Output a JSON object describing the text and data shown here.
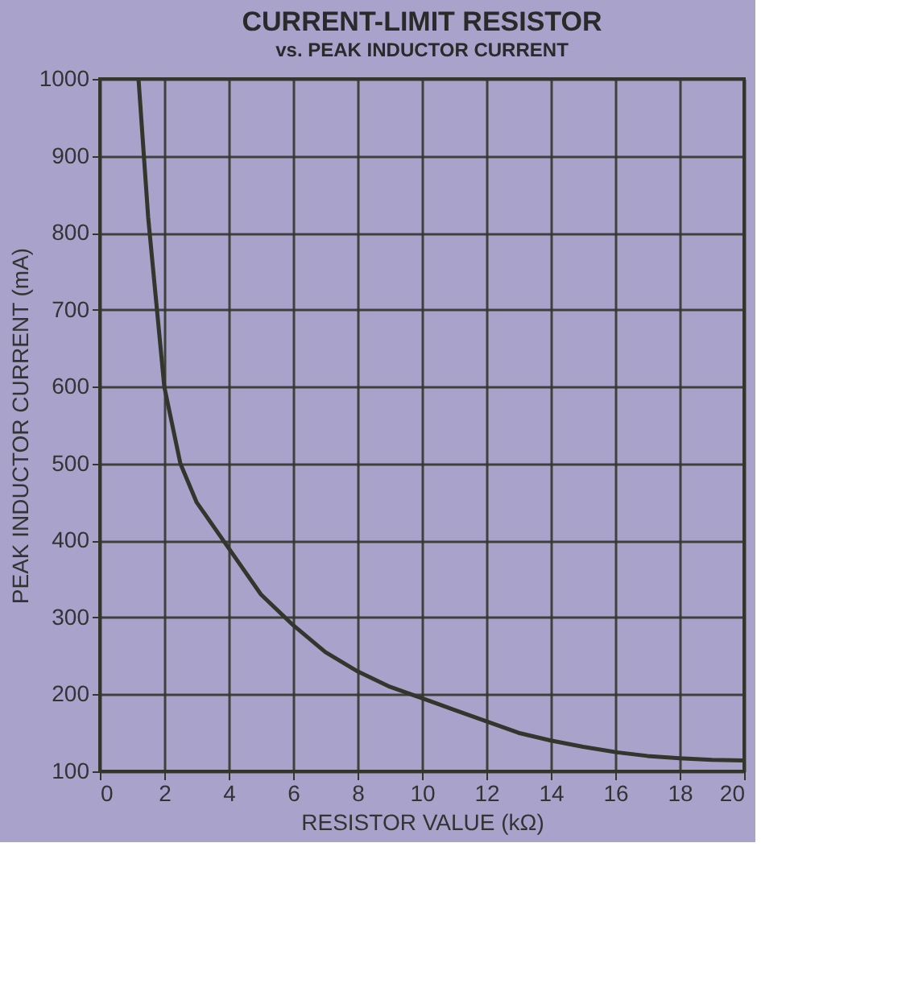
{
  "chart_data": {
    "type": "line",
    "title": "CURRENT-LIMIT RESISTOR",
    "subtitle": "vs. PEAK INDUCTOR CURRENT",
    "xlabel": "RESISTOR VALUE (kΩ)",
    "ylabel": "PEAK INDUCTOR CURRENT (mA)",
    "x": [
      1.2,
      1.5,
      2,
      2.5,
      3,
      4,
      5,
      6,
      7,
      8,
      9,
      10,
      11,
      12,
      13,
      14,
      15,
      16,
      17,
      18,
      19,
      20
    ],
    "series": [
      {
        "color": "#33362c",
        "values": [
          1000,
          820,
          600,
          500,
          450,
          390,
          330,
          290,
          255,
          230,
          210,
          195,
          180,
          165,
          150,
          140,
          132,
          125,
          120,
          117,
          115,
          114
        ]
      }
    ],
    "xlim": [
      0,
      20
    ],
    "xticks": [
      0,
      2,
      4,
      6,
      8,
      10,
      12,
      14,
      16,
      18,
      20
    ],
    "ylim": [
      100,
      1000
    ],
    "yticks": [
      100,
      200,
      300,
      400,
      500,
      600,
      700,
      800,
      900,
      1000
    ],
    "grid": true,
    "marker": "none",
    "line_style": "solid"
  }
}
